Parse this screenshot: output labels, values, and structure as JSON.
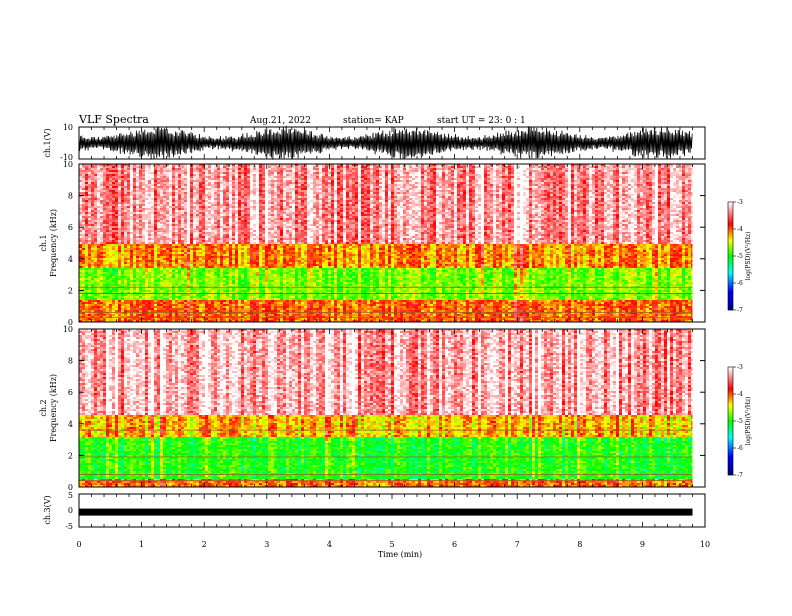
{
  "header": {
    "title": "VLF Spectra",
    "date": "Aug.21, 2022",
    "station": "station= KAP",
    "start_ut": "start  UT =   23: 0  : 1"
  },
  "chart_data": [
    {
      "id": "ch1_waveform",
      "type": "line",
      "ylabel": "ch.1(V)",
      "yticks": [
        "10",
        "-10"
      ],
      "ylim": [
        -10,
        10
      ],
      "xlim": [
        0,
        10
      ],
      "x_end": 9.8,
      "color": "#000000",
      "description_values": "dense oscillation spanning roughly -10 to +10 V"
    },
    {
      "id": "ch1_spectrogram",
      "type": "heatmap",
      "ylabel": "ch.1\nFrequency (kHz)",
      "ylabel_line1": "ch.1",
      "ylabel_line2": "Frequency  (kHz)",
      "yticks": [
        "0",
        "2",
        "4",
        "6",
        "8",
        "10"
      ],
      "ylim": [
        0,
        10
      ],
      "xlim": [
        0,
        10
      ],
      "x_end": 9.8,
      "colorbar": {
        "label": "log(PSD)(V²/Hz)",
        "ticks": [
          "-3",
          "-4",
          "-5",
          "-6",
          "-7"
        ],
        "range": [
          -7,
          -3
        ],
        "colors": [
          "#000080",
          "#0000ff",
          "#00ffff",
          "#00ff00",
          "#ffff00",
          "#ff0000",
          "#ffffff"
        ]
      },
      "bands": [
        {
          "from_khz": 0,
          "to_khz": 1.5,
          "level": -4.0
        },
        {
          "from_khz": 1.5,
          "to_khz": 3.5,
          "level": -4.7
        },
        {
          "from_khz": 3.5,
          "to_khz": 5.0,
          "level": -4.1
        },
        {
          "from_khz": 5.0,
          "to_khz": 10,
          "level": -3.3
        }
      ],
      "lines_khz": [
        0.3,
        0.6,
        1.8,
        2.2
      ]
    },
    {
      "id": "ch2_spectrogram",
      "type": "heatmap",
      "ylabel_line1": "ch.2",
      "ylabel_line2": "Frequency  (kHz)",
      "yticks": [
        "0",
        "2",
        "4",
        "6",
        "8",
        "10"
      ],
      "ylim": [
        0,
        10
      ],
      "xlim": [
        0,
        10
      ],
      "x_end": 9.8,
      "colorbar": {
        "label": "log(PSD)(V²/Hz)",
        "ticks": [
          "-3",
          "-4",
          "-5",
          "-6",
          "-7"
        ],
        "range": [
          -7,
          -3
        ]
      },
      "bands": [
        {
          "from_khz": 0,
          "to_khz": 0.6,
          "level": -4.1
        },
        {
          "from_khz": 0.6,
          "to_khz": 3.2,
          "level": -5.0
        },
        {
          "from_khz": 3.2,
          "to_khz": 4.6,
          "level": -4.3
        },
        {
          "from_khz": 4.6,
          "to_khz": 10,
          "level": -3.3
        }
      ],
      "lines_khz": [
        0.4,
        0.8,
        1.9,
        3.6
      ]
    },
    {
      "id": "ch3_trace",
      "type": "line",
      "ylabel": "ch.3(V)",
      "yticks": [
        "5",
        "0",
        "-5"
      ],
      "ylim": [
        -5,
        5
      ],
      "xlim": [
        0,
        10
      ],
      "x_end": 9.8,
      "value_v": -0.5,
      "color": "#000000"
    }
  ],
  "xaxis": {
    "label": "Time  (min)",
    "ticks": [
      "0",
      "1",
      "2",
      "3",
      "4",
      "5",
      "6",
      "7",
      "8",
      "9",
      "10"
    ]
  }
}
